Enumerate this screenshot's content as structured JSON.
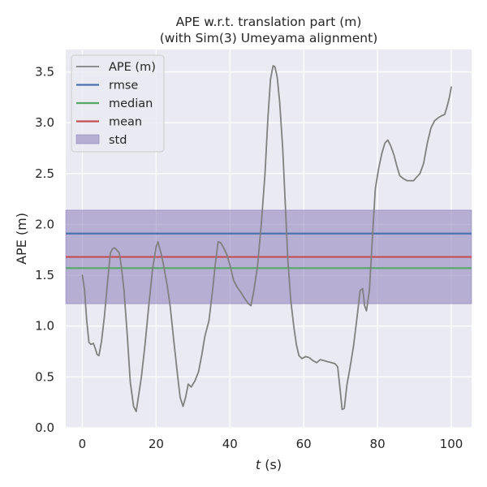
{
  "chart_data": {
    "type": "line",
    "title": [
      "APE w.r.t. translation part (m)",
      "(with Sim(3) Umeyama alignment)"
    ],
    "xlabel": "t (s)",
    "ylabel": "APE (m)",
    "xlim": [
      -4.5,
      105.5
    ],
    "ylim": [
      0,
      3.72
    ],
    "xticks": [
      0,
      20,
      40,
      60,
      80,
      100
    ],
    "xtick_labels": [
      "0",
      "20",
      "40",
      "60",
      "80",
      "100"
    ],
    "yticks": [
      0.0,
      0.5,
      1.0,
      1.5,
      2.0,
      2.5,
      3.0,
      3.5
    ],
    "ytick_labels": [
      "0.0",
      "0.5",
      "1.0",
      "1.5",
      "2.0",
      "2.5",
      "3.0",
      "3.5"
    ],
    "grid": true,
    "legend_position": "top-left",
    "legend": [
      {
        "label": "APE (m)",
        "kind": "line",
        "color": "#808080"
      },
      {
        "label": "rmse",
        "kind": "line",
        "color": "#4c72b0"
      },
      {
        "label": "median",
        "kind": "line",
        "color": "#55a868"
      },
      {
        "label": "mean",
        "kind": "line",
        "color": "#c44e52"
      },
      {
        "label": "std",
        "kind": "band",
        "color": "#8172b3"
      }
    ],
    "series": [
      {
        "name": "APE (m)",
        "color": "#808080",
        "x": [
          0,
          0.6,
          1.2,
          1.8,
          2.3,
          3,
          3.5,
          4,
          4.5,
          5.2,
          6,
          7,
          7.6,
          8.2,
          8.7,
          9.3,
          10,
          10.6,
          11.3,
          12.2,
          13,
          13.9,
          14.6,
          15.3,
          16,
          17,
          18,
          19,
          20,
          20.5,
          21.3,
          22,
          23,
          23.8,
          24.8,
          25.8,
          26.5,
          27.3,
          28,
          28.7,
          29.5,
          30.5,
          31.5,
          32.4,
          33.2,
          34.3,
          35.3,
          36,
          36.8,
          37.5,
          38.3,
          39.2,
          40,
          41,
          42,
          43,
          44,
          45,
          45.7,
          46.5,
          47.5,
          48.5,
          49.5,
          50.3,
          51,
          51.7,
          52.2,
          52.8,
          53.5,
          54.3,
          55,
          55.7,
          56.5,
          57.3,
          58,
          58.7,
          59.5,
          60.5,
          61.5,
          62.5,
          63.5,
          64.5,
          65.5,
          66.5,
          67.5,
          68.5,
          69.2,
          69.8,
          70.4,
          71,
          71.7,
          72.5,
          73.5,
          74.5,
          75.3,
          76,
          76.5,
          77,
          77.8,
          78.6,
          79.4,
          80.3,
          81.2,
          82,
          82.8,
          83.6,
          84.5,
          85.2,
          86,
          87,
          88,
          89,
          89.8,
          90.5,
          91.5,
          92.5,
          93.5,
          94.5,
          95.5,
          96.5,
          97.5,
          98.2,
          98.8,
          99.5,
          100
        ],
        "y": [
          1.5,
          1.35,
          1.05,
          0.84,
          0.82,
          0.83,
          0.78,
          0.72,
          0.71,
          0.85,
          1.1,
          1.5,
          1.72,
          1.76,
          1.77,
          1.75,
          1.72,
          1.58,
          1.35,
          0.9,
          0.45,
          0.21,
          0.16,
          0.33,
          0.5,
          0.82,
          1.2,
          1.55,
          1.78,
          1.83,
          1.72,
          1.6,
          1.4,
          1.2,
          0.85,
          0.52,
          0.3,
          0.21,
          0.3,
          0.43,
          0.4,
          0.46,
          0.55,
          0.72,
          0.9,
          1.05,
          1.35,
          1.6,
          1.83,
          1.82,
          1.77,
          1.7,
          1.6,
          1.45,
          1.38,
          1.33,
          1.27,
          1.22,
          1.2,
          1.35,
          1.6,
          2.0,
          2.5,
          3.05,
          3.43,
          3.56,
          3.55,
          3.45,
          3.2,
          2.75,
          2.2,
          1.65,
          1.25,
          1.0,
          0.82,
          0.71,
          0.68,
          0.7,
          0.69,
          0.66,
          0.64,
          0.67,
          0.66,
          0.65,
          0.64,
          0.63,
          0.6,
          0.4,
          0.18,
          0.19,
          0.42,
          0.58,
          0.8,
          1.1,
          1.35,
          1.37,
          1.2,
          1.15,
          1.35,
          1.85,
          2.35,
          2.55,
          2.7,
          2.8,
          2.83,
          2.77,
          2.68,
          2.58,
          2.48,
          2.45,
          2.43,
          2.43,
          2.43,
          2.46,
          2.5,
          2.6,
          2.8,
          2.95,
          3.02,
          3.05,
          3.07,
          3.08,
          3.15,
          3.25,
          3.35
        ]
      }
    ],
    "hlines": [
      {
        "name": "rmse",
        "y": 1.91,
        "color": "#4c72b0"
      },
      {
        "name": "median",
        "y": 1.57,
        "color": "#55a868"
      },
      {
        "name": "mean",
        "y": 1.68,
        "color": "#c44e52"
      }
    ],
    "band": {
      "name": "std",
      "y0": 1.22,
      "y1": 2.14,
      "color": "#8172b3"
    },
    "colors": {
      "plot_background": "#eaeaf2",
      "grid": "#ffffff"
    }
  }
}
